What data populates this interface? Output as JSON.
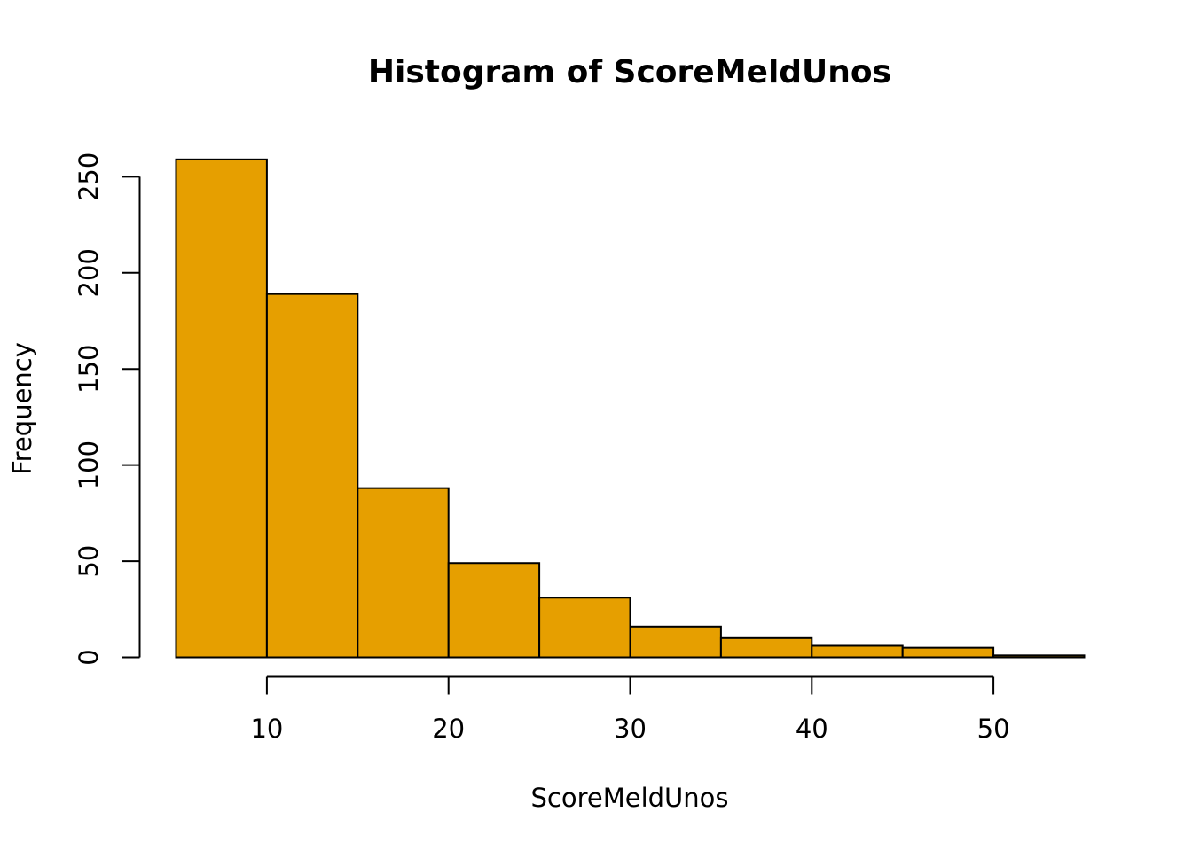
{
  "chart_data": {
    "type": "bar",
    "title": "Histogram of ScoreMeldUnos",
    "xlabel": "ScoreMeldUnos",
    "ylabel": "Frequency",
    "bar_color": "#E69F00",
    "bins": [
      {
        "from": 5,
        "to": 10,
        "value": 259
      },
      {
        "from": 10,
        "to": 15,
        "value": 189
      },
      {
        "from": 15,
        "to": 20,
        "value": 88
      },
      {
        "from": 20,
        "to": 25,
        "value": 49
      },
      {
        "from": 25,
        "to": 30,
        "value": 31
      },
      {
        "from": 30,
        "to": 35,
        "value": 16
      },
      {
        "from": 35,
        "to": 40,
        "value": 10
      },
      {
        "from": 40,
        "to": 45,
        "value": 6
      },
      {
        "from": 45,
        "to": 50,
        "value": 5
      },
      {
        "from": 50,
        "to": 55,
        "value": 1
      }
    ],
    "x_ticks": [
      10,
      20,
      30,
      40,
      50
    ],
    "y_ticks": [
      0,
      50,
      100,
      150,
      200,
      250
    ],
    "xlim": [
      5,
      55
    ],
    "ylim": [
      0,
      259
    ],
    "grid": false
  }
}
